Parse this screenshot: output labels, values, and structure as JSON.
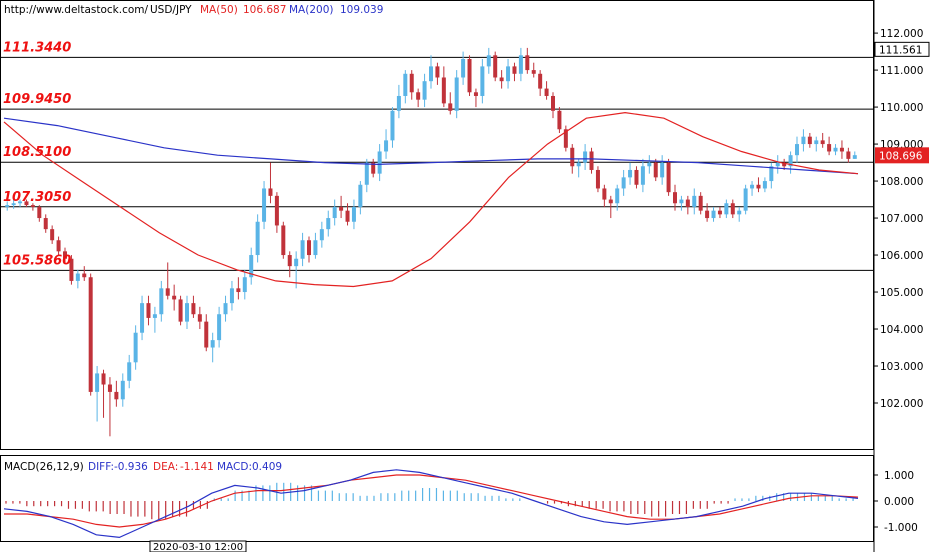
{
  "header": {
    "site": "http://www.deltastock.com/",
    "symbol": "USD/JPY",
    "ma50_label": "MA(50)",
    "ma50_value": "106.687",
    "ma200_label": "MA(200)",
    "ma200_value": "109.039"
  },
  "colors": {
    "up": "#5ab4e6",
    "down": "#c0323a",
    "ma50": "#e32222",
    "ma200": "#2a33c8",
    "level_text": "#ee1111",
    "grid_line": "#000000",
    "macd_hist_pos": "#5ab4e6",
    "macd_hist_neg": "#c0323a",
    "diff_line": "#2a33c8",
    "dea_line": "#e32222"
  },
  "macd_header": {
    "label": "MACD(26,12,9)",
    "diff_label": "DIFF:",
    "diff_value": "-0.936",
    "dea_label": "DEA:",
    "dea_value": "-1.141",
    "macd_label": "MACD:",
    "macd_value": "0.409"
  },
  "date_marker": "2020-03-10 12:00",
  "chart_data": {
    "type": "candlestick",
    "price_axis": {
      "ticks": [
        "112.000",
        "111.000",
        "110.000",
        "109.000",
        "108.000",
        "107.000",
        "106.000",
        "105.000",
        "104.000",
        "103.000",
        "102.000"
      ],
      "range": [
        101.0,
        112.3
      ]
    },
    "levels": [
      {
        "label": "111.3440",
        "value": 111.344
      },
      {
        "label": "109.9450",
        "value": 109.945
      },
      {
        "label": "108.5100",
        "value": 108.51
      },
      {
        "label": "107.3050",
        "value": 107.305
      },
      {
        "label": "105.5860",
        "value": 105.586
      }
    ],
    "price_markers": [
      {
        "label": "111.561",
        "value": 111.561,
        "style": "box"
      },
      {
        "label": "108.696",
        "value": 108.696,
        "style": "highlight"
      }
    ],
    "candles": [
      {
        "o": 107.3,
        "h": 107.45,
        "l": 107.2,
        "c": 107.35
      },
      {
        "o": 107.35,
        "h": 107.5,
        "l": 107.25,
        "c": 107.4
      },
      {
        "o": 107.4,
        "h": 107.5,
        "l": 107.3,
        "c": 107.45
      },
      {
        "o": 107.45,
        "h": 107.5,
        "l": 107.3,
        "c": 107.35
      },
      {
        "o": 107.35,
        "h": 107.4,
        "l": 107.2,
        "c": 107.3
      },
      {
        "o": 107.3,
        "h": 107.35,
        "l": 106.9,
        "c": 107.0
      },
      {
        "o": 107.0,
        "h": 107.1,
        "l": 106.6,
        "c": 106.7
      },
      {
        "o": 106.7,
        "h": 106.8,
        "l": 106.3,
        "c": 106.4
      },
      {
        "o": 106.4,
        "h": 106.5,
        "l": 106.0,
        "c": 106.1
      },
      {
        "o": 106.1,
        "h": 106.2,
        "l": 105.8,
        "c": 105.9
      },
      {
        "o": 105.9,
        "h": 106.0,
        "l": 105.2,
        "c": 105.3
      },
      {
        "o": 105.3,
        "h": 105.6,
        "l": 105.1,
        "c": 105.5
      },
      {
        "o": 105.5,
        "h": 105.7,
        "l": 105.3,
        "c": 105.4
      },
      {
        "o": 105.4,
        "h": 105.5,
        "l": 102.2,
        "c": 102.3
      },
      {
        "o": 102.3,
        "h": 103.0,
        "l": 101.5,
        "c": 102.8
      },
      {
        "o": 102.8,
        "h": 102.9,
        "l": 101.6,
        "c": 102.5
      },
      {
        "o": 102.5,
        "h": 102.7,
        "l": 101.1,
        "c": 102.3
      },
      {
        "o": 102.3,
        "h": 102.6,
        "l": 101.9,
        "c": 102.1
      },
      {
        "o": 102.1,
        "h": 102.8,
        "l": 101.9,
        "c": 102.6
      },
      {
        "o": 102.6,
        "h": 103.3,
        "l": 102.4,
        "c": 103.1
      },
      {
        "o": 103.1,
        "h": 104.1,
        "l": 102.9,
        "c": 103.9
      },
      {
        "o": 103.9,
        "h": 104.9,
        "l": 103.7,
        "c": 104.7
      },
      {
        "o": 104.7,
        "h": 104.9,
        "l": 104.1,
        "c": 104.3
      },
      {
        "o": 104.3,
        "h": 104.6,
        "l": 103.9,
        "c": 104.4
      },
      {
        "o": 104.4,
        "h": 105.3,
        "l": 104.2,
        "c": 105.1
      },
      {
        "o": 105.1,
        "h": 105.8,
        "l": 104.8,
        "c": 104.9
      },
      {
        "o": 104.9,
        "h": 105.2,
        "l": 104.5,
        "c": 104.8
      },
      {
        "o": 104.8,
        "h": 104.9,
        "l": 104.1,
        "c": 104.2
      },
      {
        "o": 104.2,
        "h": 104.9,
        "l": 104.0,
        "c": 104.7
      },
      {
        "o": 104.7,
        "h": 104.9,
        "l": 104.3,
        "c": 104.4
      },
      {
        "o": 104.4,
        "h": 104.6,
        "l": 104.0,
        "c": 104.2
      },
      {
        "o": 104.2,
        "h": 104.4,
        "l": 103.4,
        "c": 103.5
      },
      {
        "o": 103.5,
        "h": 103.9,
        "l": 103.1,
        "c": 103.7
      },
      {
        "o": 103.7,
        "h": 104.6,
        "l": 103.5,
        "c": 104.4
      },
      {
        "o": 104.4,
        "h": 104.9,
        "l": 104.2,
        "c": 104.7
      },
      {
        "o": 104.7,
        "h": 105.3,
        "l": 104.5,
        "c": 105.1
      },
      {
        "o": 105.1,
        "h": 105.4,
        "l": 104.8,
        "c": 105.0
      },
      {
        "o": 105.0,
        "h": 105.6,
        "l": 104.8,
        "c": 105.4
      },
      {
        "o": 105.4,
        "h": 106.2,
        "l": 105.2,
        "c": 106.0
      },
      {
        "o": 106.0,
        "h": 107.1,
        "l": 105.8,
        "c": 106.9
      },
      {
        "o": 106.9,
        "h": 108.0,
        "l": 106.7,
        "c": 107.8
      },
      {
        "o": 107.8,
        "h": 108.5,
        "l": 107.4,
        "c": 107.6
      },
      {
        "o": 107.6,
        "h": 107.7,
        "l": 106.6,
        "c": 106.8
      },
      {
        "o": 106.8,
        "h": 106.9,
        "l": 105.9,
        "c": 106.0
      },
      {
        "o": 106.0,
        "h": 106.1,
        "l": 105.4,
        "c": 105.7
      },
      {
        "o": 105.7,
        "h": 106.1,
        "l": 105.1,
        "c": 105.9
      },
      {
        "o": 105.9,
        "h": 106.6,
        "l": 105.7,
        "c": 106.4
      },
      {
        "o": 106.4,
        "h": 106.5,
        "l": 105.8,
        "c": 106.0
      },
      {
        "o": 106.0,
        "h": 106.6,
        "l": 105.9,
        "c": 106.4
      },
      {
        "o": 106.4,
        "h": 106.9,
        "l": 106.2,
        "c": 106.7
      },
      {
        "o": 106.7,
        "h": 107.2,
        "l": 106.5,
        "c": 107.0
      },
      {
        "o": 107.0,
        "h": 107.5,
        "l": 106.8,
        "c": 107.3
      },
      {
        "o": 107.3,
        "h": 107.6,
        "l": 107.0,
        "c": 107.2
      },
      {
        "o": 107.2,
        "h": 107.4,
        "l": 106.8,
        "c": 106.9
      },
      {
        "o": 106.9,
        "h": 107.5,
        "l": 106.7,
        "c": 107.3
      },
      {
        "o": 107.3,
        "h": 108.0,
        "l": 107.1,
        "c": 107.9
      },
      {
        "o": 107.9,
        "h": 108.6,
        "l": 107.7,
        "c": 108.5
      },
      {
        "o": 108.5,
        "h": 108.6,
        "l": 108.1,
        "c": 108.2
      },
      {
        "o": 108.2,
        "h": 109.0,
        "l": 108.0,
        "c": 108.8
      },
      {
        "o": 108.8,
        "h": 109.4,
        "l": 108.6,
        "c": 109.1
      },
      {
        "o": 109.1,
        "h": 110.0,
        "l": 108.9,
        "c": 109.9
      },
      {
        "o": 109.9,
        "h": 110.6,
        "l": 109.7,
        "c": 110.3
      },
      {
        "o": 110.3,
        "h": 111.0,
        "l": 110.1,
        "c": 110.9
      },
      {
        "o": 110.9,
        "h": 111.0,
        "l": 110.2,
        "c": 110.4
      },
      {
        "o": 110.4,
        "h": 110.5,
        "l": 110.0,
        "c": 110.2
      },
      {
        "o": 110.2,
        "h": 110.9,
        "l": 110.0,
        "c": 110.7
      },
      {
        "o": 110.7,
        "h": 111.4,
        "l": 110.5,
        "c": 111.1
      },
      {
        "o": 111.1,
        "h": 111.2,
        "l": 110.6,
        "c": 110.8
      },
      {
        "o": 110.8,
        "h": 111.1,
        "l": 110.0,
        "c": 110.1
      },
      {
        "o": 110.1,
        "h": 110.4,
        "l": 109.8,
        "c": 109.9
      },
      {
        "o": 109.9,
        "h": 111.0,
        "l": 109.7,
        "c": 110.8
      },
      {
        "o": 110.8,
        "h": 111.5,
        "l": 110.6,
        "c": 111.3
      },
      {
        "o": 111.3,
        "h": 111.4,
        "l": 110.3,
        "c": 110.4
      },
      {
        "o": 110.4,
        "h": 110.5,
        "l": 110.0,
        "c": 110.3
      },
      {
        "o": 110.3,
        "h": 111.3,
        "l": 110.1,
        "c": 111.1
      },
      {
        "o": 111.1,
        "h": 111.6,
        "l": 110.9,
        "c": 111.4
      },
      {
        "o": 111.4,
        "h": 111.5,
        "l": 110.7,
        "c": 110.8
      },
      {
        "o": 110.8,
        "h": 111.0,
        "l": 110.5,
        "c": 110.7
      },
      {
        "o": 110.7,
        "h": 111.3,
        "l": 110.5,
        "c": 111.1
      },
      {
        "o": 111.1,
        "h": 111.2,
        "l": 110.7,
        "c": 110.9
      },
      {
        "o": 110.9,
        "h": 111.6,
        "l": 110.7,
        "c": 111.4
      },
      {
        "o": 111.4,
        "h": 111.6,
        "l": 110.9,
        "c": 111.0
      },
      {
        "o": 111.0,
        "h": 111.2,
        "l": 110.8,
        "c": 110.9
      },
      {
        "o": 110.9,
        "h": 111.0,
        "l": 110.3,
        "c": 110.5
      },
      {
        "o": 110.5,
        "h": 110.7,
        "l": 110.2,
        "c": 110.3
      },
      {
        "o": 110.3,
        "h": 110.4,
        "l": 109.7,
        "c": 109.9
      },
      {
        "o": 109.9,
        "h": 110.0,
        "l": 109.3,
        "c": 109.4
      },
      {
        "o": 109.4,
        "h": 109.5,
        "l": 108.8,
        "c": 108.9
      },
      {
        "o": 108.9,
        "h": 109.0,
        "l": 108.2,
        "c": 108.4
      },
      {
        "o": 108.4,
        "h": 108.6,
        "l": 108.1,
        "c": 108.5
      },
      {
        "o": 108.5,
        "h": 109.0,
        "l": 108.3,
        "c": 108.8
      },
      {
        "o": 108.8,
        "h": 108.9,
        "l": 108.2,
        "c": 108.3
      },
      {
        "o": 108.3,
        "h": 108.4,
        "l": 107.7,
        "c": 107.8
      },
      {
        "o": 107.8,
        "h": 107.9,
        "l": 107.3,
        "c": 107.5
      },
      {
        "o": 107.5,
        "h": 107.6,
        "l": 107.0,
        "c": 107.4
      },
      {
        "o": 107.4,
        "h": 107.9,
        "l": 107.2,
        "c": 107.8
      },
      {
        "o": 107.8,
        "h": 108.3,
        "l": 107.6,
        "c": 108.1
      },
      {
        "o": 108.1,
        "h": 108.5,
        "l": 107.9,
        "c": 108.3
      },
      {
        "o": 108.3,
        "h": 108.4,
        "l": 107.8,
        "c": 107.9
      },
      {
        "o": 107.9,
        "h": 108.6,
        "l": 107.7,
        "c": 108.4
      },
      {
        "o": 108.4,
        "h": 108.7,
        "l": 108.2,
        "c": 108.5
      },
      {
        "o": 108.5,
        "h": 108.6,
        "l": 108.0,
        "c": 108.1
      },
      {
        "o": 108.1,
        "h": 108.7,
        "l": 107.9,
        "c": 108.5
      },
      {
        "o": 108.5,
        "h": 108.6,
        "l": 107.6,
        "c": 107.7
      },
      {
        "o": 107.7,
        "h": 107.9,
        "l": 107.2,
        "c": 107.4
      },
      {
        "o": 107.4,
        "h": 107.6,
        "l": 107.2,
        "c": 107.5
      },
      {
        "o": 107.5,
        "h": 107.6,
        "l": 107.1,
        "c": 107.3
      },
      {
        "o": 107.3,
        "h": 107.8,
        "l": 107.1,
        "c": 107.6
      },
      {
        "o": 107.6,
        "h": 107.7,
        "l": 107.1,
        "c": 107.2
      },
      {
        "o": 107.2,
        "h": 107.4,
        "l": 106.9,
        "c": 107.0
      },
      {
        "o": 107.0,
        "h": 107.3,
        "l": 106.9,
        "c": 107.2
      },
      {
        "o": 107.2,
        "h": 107.3,
        "l": 107.0,
        "c": 107.1
      },
      {
        "o": 107.1,
        "h": 107.5,
        "l": 107.0,
        "c": 107.4
      },
      {
        "o": 107.4,
        "h": 107.5,
        "l": 107.0,
        "c": 107.1
      },
      {
        "o": 107.1,
        "h": 107.3,
        "l": 106.9,
        "c": 107.2
      },
      {
        "o": 107.2,
        "h": 107.9,
        "l": 107.1,
        "c": 107.8
      },
      {
        "o": 107.8,
        "h": 108.0,
        "l": 107.6,
        "c": 107.9
      },
      {
        "o": 107.9,
        "h": 108.1,
        "l": 107.7,
        "c": 107.8
      },
      {
        "o": 107.8,
        "h": 108.1,
        "l": 107.7,
        "c": 108.0
      },
      {
        "o": 108.0,
        "h": 108.5,
        "l": 107.8,
        "c": 108.4
      },
      {
        "o": 108.4,
        "h": 108.7,
        "l": 108.2,
        "c": 108.5
      },
      {
        "o": 108.5,
        "h": 108.6,
        "l": 108.3,
        "c": 108.4
      },
      {
        "o": 108.4,
        "h": 108.8,
        "l": 108.2,
        "c": 108.7
      },
      {
        "o": 108.7,
        "h": 109.2,
        "l": 108.5,
        "c": 109.0
      },
      {
        "o": 109.0,
        "h": 109.4,
        "l": 108.8,
        "c": 109.2
      },
      {
        "o": 109.2,
        "h": 109.3,
        "l": 108.9,
        "c": 109.0
      },
      {
        "o": 109.0,
        "h": 109.2,
        "l": 108.8,
        "c": 109.1
      },
      {
        "o": 109.1,
        "h": 109.3,
        "l": 108.9,
        "c": 109.0
      },
      {
        "o": 109.0,
        "h": 109.2,
        "l": 108.7,
        "c": 108.8
      },
      {
        "o": 108.8,
        "h": 109.0,
        "l": 108.7,
        "c": 108.9
      },
      {
        "o": 108.9,
        "h": 109.1,
        "l": 108.6,
        "c": 108.8
      },
      {
        "o": 108.8,
        "h": 108.9,
        "l": 108.5,
        "c": 108.6
      },
      {
        "o": 108.6,
        "h": 108.8,
        "l": 108.6,
        "c": 108.7
      }
    ],
    "ma50": [
      [
        0,
        109.6
      ],
      [
        1,
        108.7
      ],
      [
        2,
        108.0
      ],
      [
        3,
        107.3
      ],
      [
        4,
        106.6
      ],
      [
        5,
        106.0
      ],
      [
        6,
        105.6
      ],
      [
        7,
        105.3
      ],
      [
        8,
        105.2
      ],
      [
        9,
        105.15
      ],
      [
        10,
        105.3
      ],
      [
        11,
        105.9
      ],
      [
        12,
        106.9
      ],
      [
        13,
        108.1
      ],
      [
        14,
        109.0
      ],
      [
        15,
        109.7
      ],
      [
        16,
        109.85
      ],
      [
        17,
        109.7
      ],
      [
        18,
        109.2
      ],
      [
        19,
        108.8
      ],
      [
        20,
        108.5
      ],
      [
        21,
        108.3
      ],
      [
        22,
        108.2
      ]
    ],
    "ma200": [
      [
        0,
        109.7
      ],
      [
        1,
        109.5
      ],
      [
        2,
        109.2
      ],
      [
        3,
        108.9
      ],
      [
        4,
        108.7
      ],
      [
        5,
        108.6
      ],
      [
        6,
        108.5
      ],
      [
        7,
        108.45
      ],
      [
        8,
        108.5
      ],
      [
        9,
        108.55
      ],
      [
        10,
        108.6
      ],
      [
        11,
        108.6
      ],
      [
        12,
        108.55
      ],
      [
        13,
        108.5
      ],
      [
        14,
        108.4
      ],
      [
        15,
        108.3
      ],
      [
        16,
        108.2
      ]
    ],
    "macd": {
      "ticks": [
        "1.000",
        "0.000",
        "-1.000"
      ],
      "range": [
        -1.5,
        1.5
      ],
      "histogram": [
        -0.1,
        -0.2,
        -0.2,
        -0.3,
        -0.4,
        -0.5,
        -0.6,
        -0.7,
        -0.6,
        -0.3,
        0.1,
        0.4,
        0.6,
        0.7,
        0.6,
        0.4,
        0.3,
        0.2,
        0.3,
        0.4,
        0.5,
        0.4,
        0.3,
        0.2,
        0.1,
        0.0,
        -0.1,
        -0.2,
        -0.3,
        -0.4,
        -0.5,
        -0.6,
        -0.5,
        -0.3,
        -0.1,
        0.1,
        0.2,
        0.3,
        0.3,
        0.2,
        0.1
      ],
      "diff": [
        -0.3,
        -0.4,
        -0.6,
        -0.9,
        -1.3,
        -1.4,
        -1.0,
        -0.6,
        -0.2,
        0.3,
        0.6,
        0.5,
        0.3,
        0.4,
        0.6,
        0.8,
        1.1,
        1.2,
        1.1,
        0.9,
        0.7,
        0.5,
        0.3,
        0.0,
        -0.3,
        -0.6,
        -0.8,
        -0.9,
        -0.8,
        -0.7,
        -0.6,
        -0.4,
        -0.2,
        0.1,
        0.3,
        0.3,
        0.2,
        0.1
      ],
      "dea": [
        -0.5,
        -0.5,
        -0.6,
        -0.7,
        -0.9,
        -1.0,
        -0.9,
        -0.7,
        -0.4,
        0.0,
        0.3,
        0.4,
        0.4,
        0.5,
        0.6,
        0.8,
        0.9,
        1.0,
        1.0,
        0.9,
        0.8,
        0.6,
        0.4,
        0.2,
        0.0,
        -0.2,
        -0.4,
        -0.6,
        -0.7,
        -0.7,
        -0.6,
        -0.5,
        -0.3,
        -0.1,
        0.1,
        0.2,
        0.2,
        0.15
      ]
    }
  }
}
